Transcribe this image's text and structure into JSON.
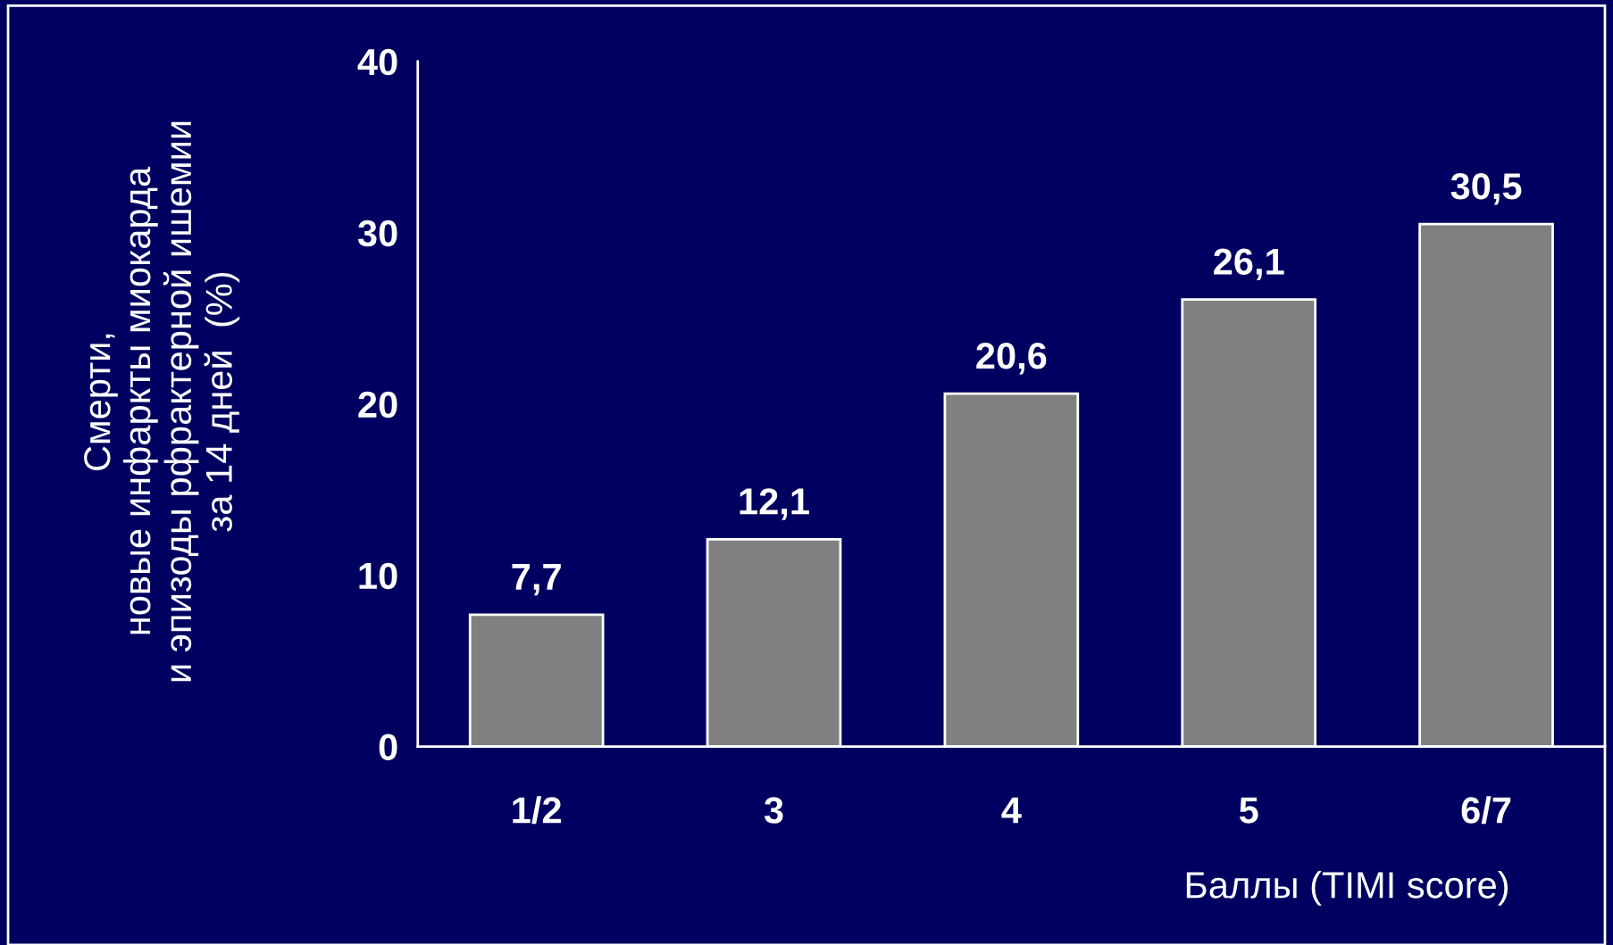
{
  "chart_data": {
    "type": "bar",
    "ylabel": "Смерти,\nновые инфаркты миокарда\nи эпизоды рфрактерной ишемии\nза 14 дней  (%)",
    "xlabel": "Баллы (TIMI score)",
    "categories": [
      "1/2",
      "3",
      "4",
      "5",
      "6/7"
    ],
    "values": [
      7.7,
      12.1,
      20.6,
      26.1,
      30.5
    ],
    "value_labels": [
      "7,7",
      "12,1",
      "20,6",
      "26,1",
      "30,5"
    ],
    "color": "#808080",
    "ylim": [
      0,
      40
    ],
    "yticks": [
      0,
      10,
      20,
      30,
      40
    ],
    "grid": false,
    "legend": false
  }
}
